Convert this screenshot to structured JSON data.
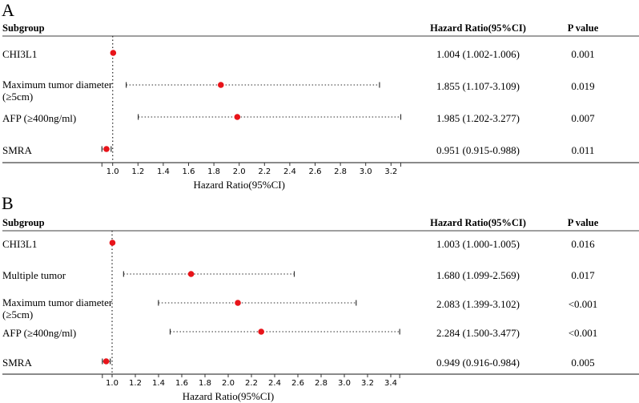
{
  "colors": {
    "point": "#e8141a",
    "line": "#555555",
    "header_rule": "#666666"
  },
  "chart_data": [
    {
      "type": "forest",
      "panel": "A",
      "headers": {
        "subgroup": "Subgroup",
        "hr": "Hazard Ratio(95%CI)",
        "p": "P value"
      },
      "xlabel": "Hazard Ratio(95%CI)",
      "reference_line": 1.0,
      "xlim": [
        0.915,
        3.277
      ],
      "ticks": [
        "1.0",
        "1.2",
        "1.4",
        "1.6",
        "1.8",
        "2.0",
        "2.2",
        "2.4",
        "2.6",
        "2.8",
        "3.0",
        "3.2"
      ],
      "rows": [
        {
          "label": [
            "CHI3L1"
          ],
          "hr": 1.004,
          "lo": 1.002,
          "hi": 1.006,
          "hr_text": "1.004 (1.002-1.006)",
          "p": "0.001"
        },
        {
          "label": [
            "Maximum tumor diameter",
            "(≥5cm)"
          ],
          "hr": 1.855,
          "lo": 1.107,
          "hi": 3.109,
          "hr_text": "1.855 (1.107-3.109)",
          "p": "0.019"
        },
        {
          "label": [
            "AFP (≥400ng/ml)"
          ],
          "hr": 1.985,
          "lo": 1.202,
          "hi": 3.277,
          "hr_text": "1.985 (1.202-3.277)",
          "p": "0.007"
        },
        {
          "label": [
            "SMRA"
          ],
          "hr": 0.951,
          "lo": 0.915,
          "hi": 0.988,
          "hr_text": "0.951 (0.915-0.988)",
          "p": "0.011"
        }
      ]
    },
    {
      "type": "forest",
      "panel": "B",
      "headers": {
        "subgroup": "Subgroup",
        "hr": "Hazard Ratio(95%CI)",
        "p": "P value"
      },
      "xlabel": "Hazard Ratio(95%CI)",
      "reference_line": 1.0,
      "xlim": [
        0.916,
        3.477
      ],
      "ticks": [
        "1.0",
        "1.2",
        "1.4",
        "1.6",
        "1.8",
        "2.0",
        "2.2",
        "2.4",
        "2.6",
        "2.8",
        "3.0",
        "3.2",
        "3.4"
      ],
      "rows": [
        {
          "label": [
            "CHI3L1"
          ],
          "hr": 1.003,
          "lo": 1.0,
          "hi": 1.005,
          "hr_text": "1.003 (1.000-1.005)",
          "p": "0.016"
        },
        {
          "label": [
            "Multiple tumor"
          ],
          "hr": 1.68,
          "lo": 1.099,
          "hi": 2.569,
          "hr_text": "1.680 (1.099-2.569)",
          "p": "0.017"
        },
        {
          "label": [
            "Maximum tumor diameter",
            "(≥5cm)"
          ],
          "hr": 2.083,
          "lo": 1.399,
          "hi": 3.102,
          "hr_text": "2.083 (1.399-3.102)",
          "p": "<0.001"
        },
        {
          "label": [
            "AFP (≥400ng/ml)"
          ],
          "hr": 2.284,
          "lo": 1.5,
          "hi": 3.477,
          "hr_text": "2.284 (1.500-3.477)",
          "p": "<0.001"
        },
        {
          "label": [
            "SMRA"
          ],
          "hr": 0.949,
          "lo": 0.916,
          "hi": 0.984,
          "hr_text": "0.949 (0.916-0.984)",
          "p": "0.005"
        }
      ]
    }
  ]
}
